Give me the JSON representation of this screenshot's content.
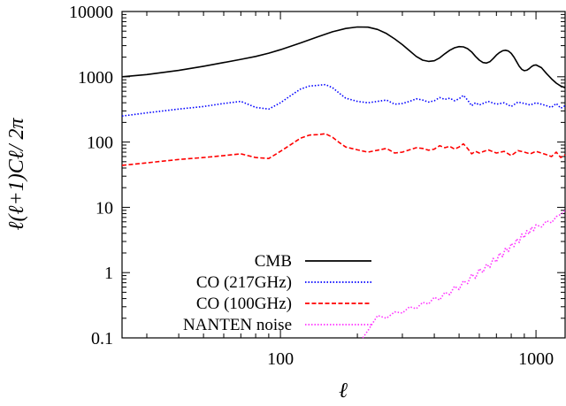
{
  "chart_data": {
    "type": "line",
    "xlabel": "ℓ",
    "ylabel": "ℓ(ℓ+1)Cℓ/ 2π",
    "xscale": "log",
    "yscale": "log",
    "xlim": [
      24,
      1300
    ],
    "ylim": [
      0.1,
      10000
    ],
    "grid": false,
    "legend_position": "bottom-left-center",
    "x_ticks": [
      {
        "value": 100,
        "label": "100"
      },
      {
        "value": 1000,
        "label": "1000"
      }
    ],
    "y_ticks": [
      {
        "value": 10000,
        "label": "10000"
      },
      {
        "value": 1000,
        "label": "1000"
      },
      {
        "value": 100,
        "label": "100"
      },
      {
        "value": 10,
        "label": "10"
      },
      {
        "value": 1,
        "label": "1"
      },
      {
        "value": 0.1,
        "label": "0.1"
      }
    ],
    "series": [
      {
        "name": "CMB",
        "color": "#000000",
        "style": "solid",
        "x": [
          24,
          30,
          40,
          50,
          60,
          70,
          80,
          90,
          100,
          120,
          140,
          160,
          180,
          200,
          220,
          240,
          260,
          280,
          300,
          320,
          340,
          360,
          380,
          400,
          420,
          440,
          460,
          480,
          500,
          520,
          540,
          560,
          580,
          600,
          620,
          640,
          660,
          680,
          700,
          720,
          740,
          760,
          780,
          800,
          820,
          840,
          860,
          880,
          900,
          920,
          940,
          960,
          980,
          1000,
          1050,
          1100,
          1150,
          1200,
          1250,
          1300
        ],
        "y": [
          1000,
          1080,
          1250,
          1450,
          1650,
          1850,
          2050,
          2300,
          2600,
          3300,
          4100,
          4900,
          5500,
          5800,
          5750,
          5300,
          4600,
          3800,
          3100,
          2500,
          2050,
          1800,
          1720,
          1760,
          1950,
          2250,
          2550,
          2780,
          2900,
          2870,
          2700,
          2400,
          2050,
          1800,
          1650,
          1620,
          1700,
          1900,
          2150,
          2350,
          2500,
          2550,
          2480,
          2280,
          2000,
          1700,
          1450,
          1300,
          1240,
          1260,
          1330,
          1430,
          1500,
          1520,
          1380,
          1120,
          930,
          800,
          720,
          680
        ]
      },
      {
        "name": "CO (217GHz)",
        "color": "#0000ff",
        "style": "dotted",
        "x": [
          24,
          30,
          40,
          50,
          60,
          70,
          80,
          90,
          100,
          110,
          120,
          130,
          140,
          150,
          160,
          170,
          180,
          200,
          220,
          240,
          260,
          280,
          300,
          320,
          340,
          360,
          380,
          400,
          420,
          440,
          460,
          480,
          500,
          520,
          540,
          560,
          580,
          600,
          650,
          700,
          750,
          800,
          850,
          900,
          950,
          1000,
          1050,
          1100,
          1150,
          1200,
          1250,
          1300
        ],
        "y": [
          250,
          280,
          320,
          350,
          390,
          420,
          340,
          320,
          400,
          520,
          650,
          720,
          740,
          760,
          680,
          560,
          470,
          420,
          400,
          420,
          440,
          380,
          390,
          420,
          460,
          440,
          410,
          430,
          480,
          450,
          470,
          430,
          460,
          520,
          440,
          360,
          400,
          370,
          420,
          380,
          400,
          350,
          410,
          390,
          370,
          400,
          380,
          360,
          340,
          390,
          330,
          360
        ]
      },
      {
        "name": "CO (100GHz)",
        "color": "#ff0000",
        "style": "dashed",
        "x": [
          24,
          30,
          40,
          50,
          60,
          70,
          80,
          90,
          100,
          110,
          120,
          130,
          140,
          150,
          160,
          170,
          180,
          200,
          220,
          240,
          260,
          280,
          300,
          320,
          340,
          360,
          380,
          400,
          420,
          440,
          460,
          480,
          500,
          520,
          540,
          560,
          580,
          600,
          650,
          700,
          750,
          800,
          850,
          900,
          950,
          1000,
          1050,
          1100,
          1150,
          1200,
          1250,
          1300
        ],
        "y": [
          44,
          48,
          54,
          58,
          62,
          66,
          58,
          56,
          72,
          92,
          115,
          128,
          130,
          134,
          118,
          98,
          84,
          76,
          70,
          75,
          80,
          68,
          70,
          76,
          82,
          80,
          75,
          78,
          88,
          82,
          86,
          78,
          84,
          94,
          80,
          66,
          72,
          68,
          76,
          68,
          72,
          62,
          74,
          70,
          66,
          72,
          68,
          64,
          60,
          70,
          58,
          64
        ]
      },
      {
        "name": "NANTEN noise",
        "color": "#ff33ff",
        "style": "dotted",
        "x": [
          210,
          220,
          240,
          260,
          280,
          300,
          320,
          340,
          360,
          380,
          400,
          420,
          440,
          460,
          480,
          500,
          520,
          540,
          560,
          580,
          600,
          620,
          640,
          660,
          680,
          700,
          720,
          740,
          760,
          780,
          800,
          820,
          840,
          860,
          880,
          900,
          920,
          940,
          960,
          980,
          1000,
          1050,
          1100,
          1150,
          1200,
          1250,
          1300
        ],
        "y": [
          0.1,
          0.13,
          0.22,
          0.2,
          0.25,
          0.24,
          0.3,
          0.28,
          0.35,
          0.33,
          0.42,
          0.38,
          0.5,
          0.46,
          0.62,
          0.55,
          0.75,
          0.68,
          0.95,
          0.82,
          1.15,
          1.0,
          1.35,
          1.2,
          1.65,
          1.45,
          2.0,
          1.75,
          2.4,
          2.1,
          2.8,
          2.5,
          3.3,
          2.9,
          3.9,
          3.4,
          4.4,
          3.9,
          5.0,
          4.4,
          5.4,
          5.0,
          6.2,
          5.8,
          7.2,
          7.8,
          9.0
        ]
      }
    ]
  }
}
